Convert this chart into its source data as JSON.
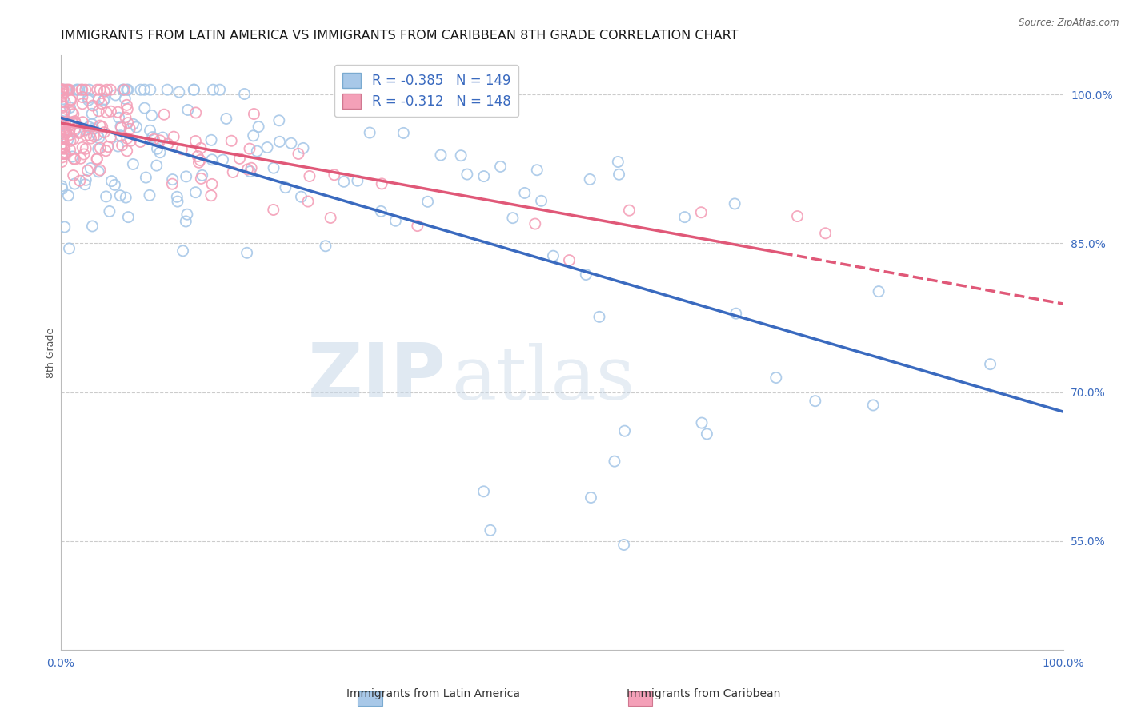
{
  "title": "IMMIGRANTS FROM LATIN AMERICA VS IMMIGRANTS FROM CARIBBEAN 8TH GRADE CORRELATION CHART",
  "source": "Source: ZipAtlas.com",
  "ylabel": "8th Grade",
  "legend_label1": "Immigrants from Latin America",
  "legend_label2": "Immigrants from Caribbean",
  "r1": -0.385,
  "n1": 149,
  "r2": -0.312,
  "n2": 148,
  "color1": "#a8c8e8",
  "color2": "#f4a0b8",
  "line_color1": "#3a6abf",
  "line_color2": "#e05878",
  "xlim": [
    0.0,
    1.0
  ],
  "ylim": [
    0.44,
    1.04
  ],
  "xticks": [
    0.0,
    0.2,
    0.4,
    0.6,
    0.8,
    1.0
  ],
  "xticklabels": [
    "0.0%",
    "",
    "",
    "",
    "",
    "100.0%"
  ],
  "ytick_right": [
    0.55,
    0.7,
    0.85,
    1.0
  ],
  "ytick_right_labels": [
    "55.0%",
    "70.0%",
    "85.0%",
    "100.0%"
  ],
  "watermark_zip": "ZIP",
  "watermark_atlas": "atlas",
  "title_fontsize": 11.5,
  "axis_label_fontsize": 9,
  "tick_fontsize": 10,
  "legend_fontsize": 12,
  "background_color": "#ffffff",
  "grid_color": "#cccccc"
}
